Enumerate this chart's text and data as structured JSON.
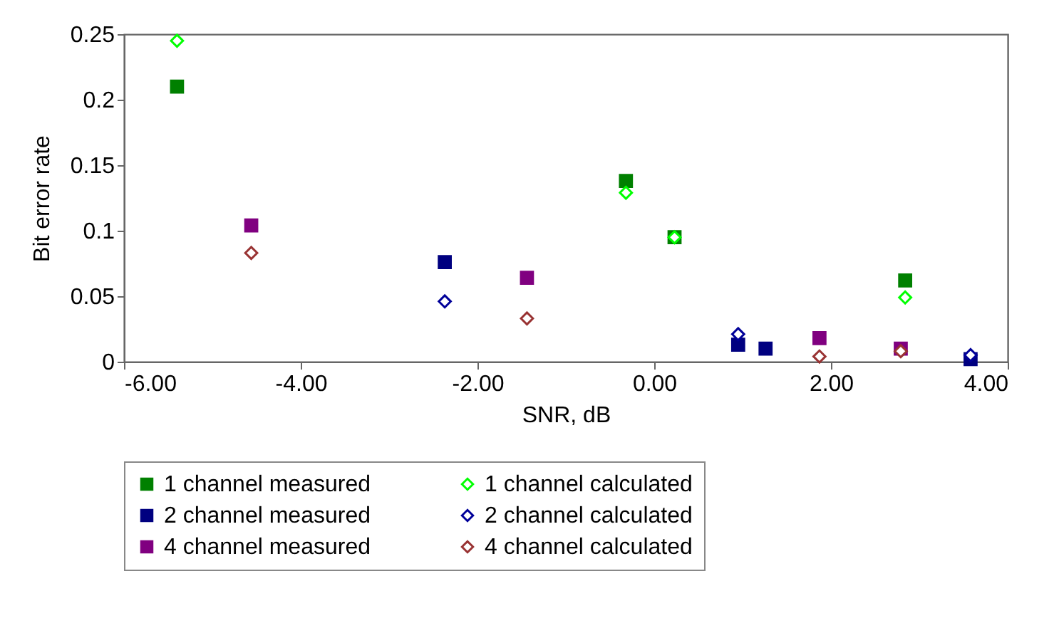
{
  "chart_data": {
    "type": "scatter",
    "xlabel": "SNR, dB",
    "ylabel": "Bit error rate",
    "xlim": [
      -6,
      4
    ],
    "xticks": [
      {
        "value": -6,
        "label": "-6.00"
      },
      {
        "value": -4,
        "label": "-4.00"
      },
      {
        "value": -2,
        "label": "-2.00"
      },
      {
        "value": 0,
        "label": "0.00"
      },
      {
        "value": 2,
        "label": "2.00"
      },
      {
        "value": 4,
        "label": "4.00"
      }
    ],
    "ylim": [
      0,
      0.25
    ],
    "yticks": [
      0,
      0.05,
      0.1,
      0.15,
      0.2,
      0.25
    ],
    "grid": false,
    "legend": "bottom",
    "series": [
      {
        "name": "1 channel measured",
        "color": "#008000",
        "marker": "square",
        "x": [
          -5.4,
          -0.32,
          0.23,
          2.84
        ],
        "values": [
          0.21,
          0.138,
          0.095,
          0.062
        ]
      },
      {
        "name": "1 channel calculated",
        "color": "#00ff00",
        "marker": "diamond",
        "x": [
          -5.4,
          -0.32,
          0.23,
          2.84
        ],
        "values": [
          0.245,
          0.129,
          0.095,
          0.049
        ]
      },
      {
        "name": "2 channel measured",
        "color": "#000080",
        "marker": "square",
        "x": [
          -2.37,
          0.95,
          1.26,
          3.58
        ],
        "values": [
          0.076,
          0.013,
          0.01,
          0.002
        ]
      },
      {
        "name": "2 channel calculated",
        "color": "#000099",
        "marker": "diamond",
        "x": [
          -2.37,
          0.95,
          3.58
        ],
        "values": [
          0.046,
          0.021,
          0.005
        ]
      },
      {
        "name": "4 channel measured",
        "color": "#800080",
        "marker": "square",
        "x": [
          -4.56,
          -1.44,
          1.87,
          2.79
        ],
        "values": [
          0.104,
          0.064,
          0.018,
          0.01
        ]
      },
      {
        "name": "4 channel calculated",
        "color": "#993333",
        "marker": "diamond",
        "x": [
          -4.56,
          -1.44,
          1.87,
          2.79
        ],
        "values": [
          0.083,
          0.033,
          0.004,
          0.008
        ]
      }
    ]
  }
}
